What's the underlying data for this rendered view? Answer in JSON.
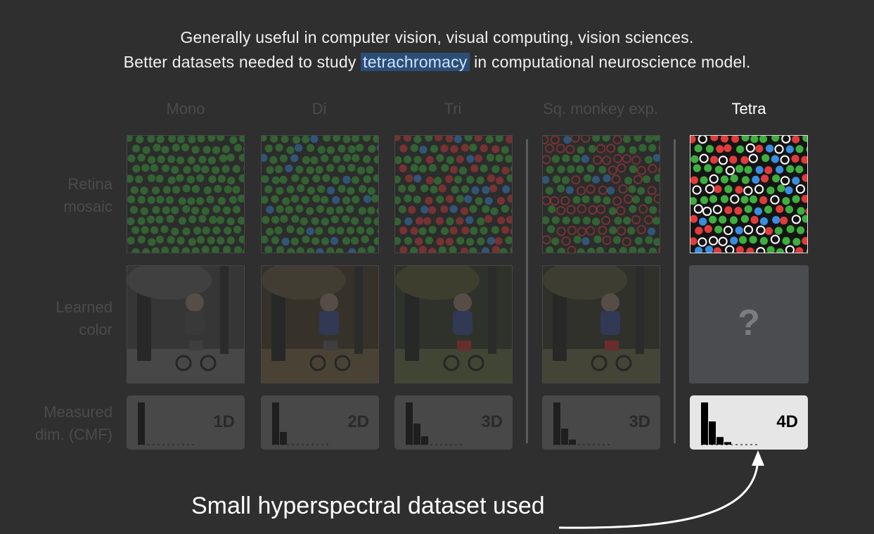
{
  "headline": {
    "line1": "Generally useful in computer vision, visual computing, vision sciences.",
    "line2_before": "Better datasets needed to study ",
    "line2_highlight": "tetrachromacy",
    "line2_after": " in computational neuroscience model."
  },
  "columns": [
    {
      "label": "Mono",
      "dim": "1D",
      "bars": [
        1.0
      ]
    },
    {
      "label": "Di",
      "dim": "2D",
      "bars": [
        1.0,
        0.3
      ]
    },
    {
      "label": "Tri",
      "dim": "3D",
      "bars": [
        1.0,
        0.5,
        0.2
      ]
    },
    {
      "label": "Sq. monkey exp.",
      "dim": "3D",
      "bars": [
        1.0,
        0.38,
        0.12
      ]
    },
    {
      "label": "Tetra",
      "dim": "4D",
      "bars": [
        1.0,
        0.55,
        0.18,
        0.06
      ]
    }
  ],
  "rows": {
    "retina": "Retina mosaic",
    "retina_l1": "Retina",
    "retina_l2": "mosaic",
    "learned_l1": "Learned",
    "learned_l2": "color",
    "measured_l1": "Measured",
    "measured_l2": "dim. (CMF)"
  },
  "unknown_mark": "?",
  "caption": "Small hyperspectral dataset used",
  "colors": {
    "background": "#2f2f2f",
    "highlight": "#2b4e76",
    "cone_green": "#3fae3f",
    "cone_red": "#e03c3c",
    "cone_blue": "#3a8ee0",
    "cone_white": "#ffffff"
  }
}
